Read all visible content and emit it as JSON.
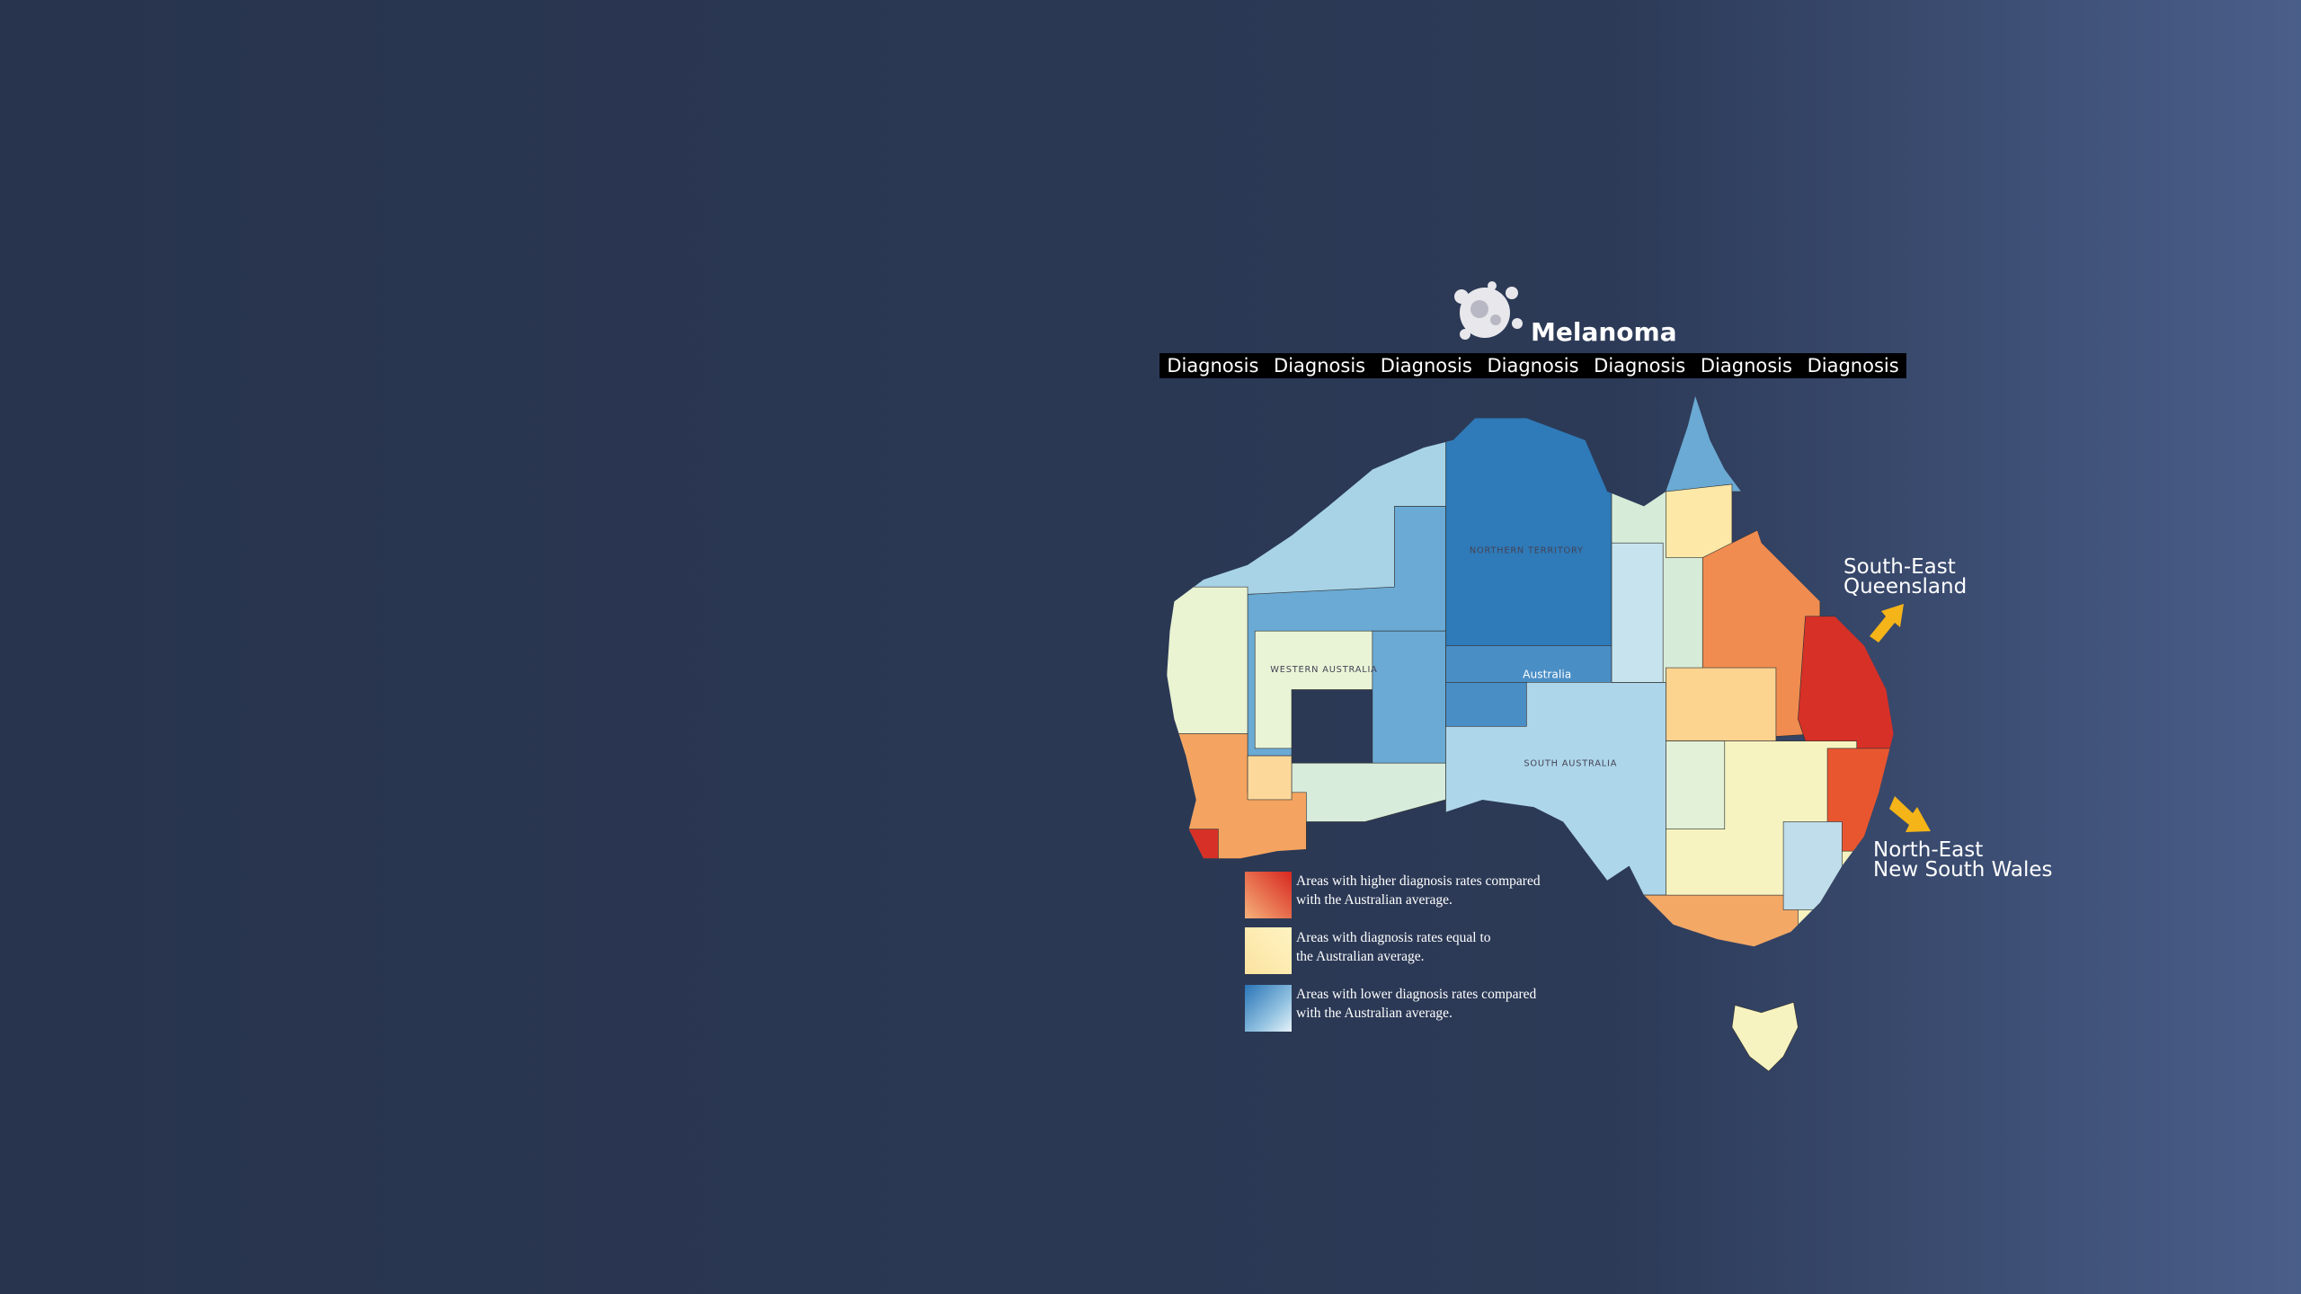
{
  "header": {
    "title": "Melanoma"
  },
  "tabs": [
    "Diagnosis",
    "Diagnosis",
    "Diagnosis",
    "Diagnosis",
    "Diagnosis",
    "Diagnosis",
    "Diagnosis"
  ],
  "map": {
    "label": "Australia",
    "regions": [
      "WESTERN AUSTRALIA",
      "NORTHERN TERRITORY",
      "SOUTH AUSTRALIA"
    ]
  },
  "annotations": [
    {
      "lines": [
        "South-East",
        "Queensland"
      ]
    },
    {
      "lines": [
        "North-East",
        "New South Wales"
      ]
    }
  ],
  "legend": [
    {
      "lines": [
        "Areas with higher diagnosis rates compared",
        "with the Australian average."
      ]
    },
    {
      "lines": [
        "Areas with diagnosis rates equal to",
        "the Australian average."
      ]
    },
    {
      "lines": [
        "Areas with lower diagnosis rates compared",
        "with the Australian average."
      ]
    }
  ]
}
